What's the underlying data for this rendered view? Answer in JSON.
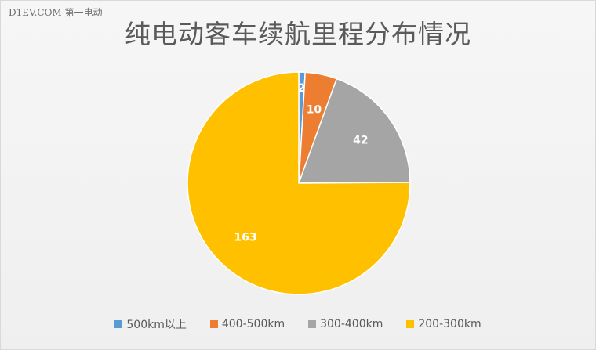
{
  "watermark": "D1EV.COM 第一电动",
  "chart_data": {
    "type": "pie",
    "title": "纯电动客车续航里程分布情况",
    "slices": [
      {
        "label": "500km以上",
        "value": 2,
        "color": "#5b9bd5"
      },
      {
        "label": "400-500km",
        "value": 10,
        "color": "#ed7d31"
      },
      {
        "label": "300-400km",
        "value": 42,
        "color": "#a5a5a5"
      },
      {
        "label": "200-300km",
        "value": 163,
        "color": "#ffc000"
      }
    ],
    "legend_position": "bottom",
    "data_labels": true
  }
}
